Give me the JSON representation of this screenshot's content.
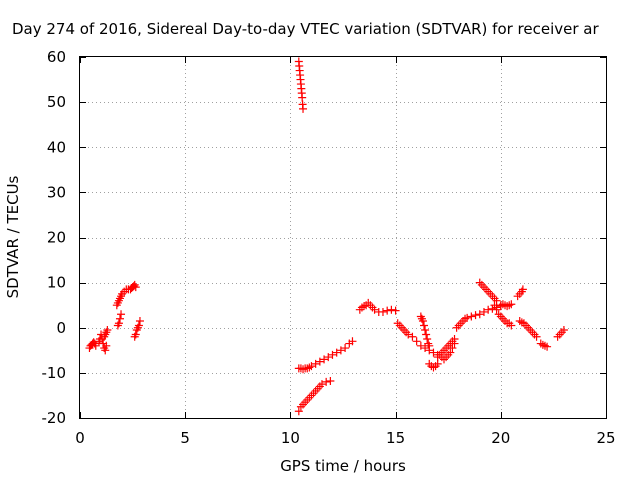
{
  "chart_data": {
    "type": "scatter",
    "title": "Day 274 of 2016, Sidereal Day-to-day VTEC variation (SDTVAR) for receiver ar",
    "xlabel": "GPS time / hours",
    "ylabel": "SDTVAR / TECUs",
    "xlim": [
      0,
      25
    ],
    "ylim": [
      -20,
      60
    ],
    "x_ticks": [
      "0",
      "5",
      "10",
      "15",
      "20",
      "25"
    ],
    "y_ticks": [
      "-20",
      "-10",
      "0",
      "10",
      "20",
      "30",
      "40",
      "50",
      "60"
    ],
    "grid": true,
    "marker": "+",
    "series_color": "#ff0000",
    "segments": [
      {
        "x": [
          0.45,
          0.5,
          0.55,
          0.6,
          0.65,
          0.7,
          0.75
        ],
        "y": [
          -4.5,
          -4.0,
          -3.8,
          -3.5,
          -3.2,
          -3.5,
          -4.0
        ]
      },
      {
        "x": [
          0.9,
          0.95,
          1.0,
          1.05,
          1.1,
          1.15,
          1.2,
          1.25
        ],
        "y": [
          -3.0,
          -2.5,
          -1.5,
          -2.5,
          -3.5,
          -4.5,
          -5.0,
          -4.0
        ]
      },
      {
        "x": [
          1.15,
          1.2,
          1.25,
          1.3
        ],
        "y": [
          -2.0,
          -1.5,
          -1.0,
          -0.5
        ]
      },
      {
        "x": [
          1.75,
          1.8,
          1.85,
          1.9,
          1.95,
          2.0,
          2.1,
          2.2,
          2.3
        ],
        "y": [
          5.0,
          5.5,
          6.0,
          6.5,
          7.0,
          7.5,
          8.0,
          8.5,
          8.5
        ]
      },
      {
        "x": [
          1.8,
          1.85,
          1.9,
          1.95
        ],
        "y": [
          0.5,
          1.0,
          2.0,
          3.0
        ]
      },
      {
        "x": [
          2.4,
          2.45,
          2.5,
          2.55,
          2.6,
          2.65
        ],
        "y": [
          8.5,
          8.8,
          9.0,
          9.2,
          9.5,
          9.0
        ]
      },
      {
        "x": [
          2.6,
          2.65,
          2.7,
          2.75,
          2.8,
          2.85
        ],
        "y": [
          -2.0,
          -1.5,
          -0.5,
          0.0,
          0.5,
          1.5
        ]
      },
      {
        "x": [
          10.4,
          10.42,
          10.44,
          10.46,
          10.48,
          10.5,
          10.52,
          10.54,
          10.56,
          10.58,
          10.6
        ],
        "y": [
          59.0,
          58.0,
          57.0,
          56.0,
          55.0,
          54.0,
          53.0,
          52.0,
          51.0,
          49.5,
          48.5
        ]
      },
      {
        "x": [
          10.4,
          10.5,
          10.6,
          10.7,
          10.8,
          10.9,
          11.0,
          11.2,
          11.4,
          11.6,
          11.8,
          12.0,
          12.2,
          12.4,
          12.6,
          12.8,
          12.95
        ],
        "y": [
          -9.0,
          -9.0,
          -9.2,
          -9.0,
          -9.0,
          -8.8,
          -8.5,
          -8.0,
          -7.5,
          -7.0,
          -6.5,
          -6.0,
          -5.5,
          -5.0,
          -4.5,
          -3.5,
          -3.0
        ]
      },
      {
        "x": [
          10.4,
          10.5,
          10.6,
          10.7,
          10.8,
          10.9,
          11.0,
          11.1,
          11.2,
          11.3,
          11.4,
          11.5,
          11.7,
          11.9
        ],
        "y": [
          -18.5,
          -17.5,
          -17.0,
          -16.5,
          -16.0,
          -15.5,
          -15.0,
          -14.5,
          -14.0,
          -13.5,
          -13.0,
          -12.5,
          -12.0,
          -11.8
        ]
      },
      {
        "x": [
          13.3,
          13.4,
          13.5,
          13.6,
          13.7,
          13.8,
          13.9,
          14.0,
          14.2,
          14.4,
          14.6,
          14.8,
          15.0
        ],
        "y": [
          4.0,
          4.5,
          4.8,
          5.0,
          5.5,
          5.0,
          4.5,
          4.0,
          3.5,
          3.5,
          3.8,
          4.0,
          3.8
        ]
      },
      {
        "x": [
          15.1,
          15.2,
          15.3,
          15.4,
          15.5,
          15.6,
          15.8,
          16.0,
          16.2,
          16.4,
          16.6,
          16.8,
          17.0,
          17.2
        ],
        "y": [
          1.0,
          0.5,
          0.0,
          -0.5,
          -1.0,
          -1.5,
          -2.0,
          -3.0,
          -4.0,
          -4.5,
          -5.0,
          -5.5,
          -6.0,
          -6.5
        ]
      },
      {
        "x": [
          16.2,
          16.25,
          16.3,
          16.35,
          16.4,
          16.45,
          16.5,
          16.55,
          16.6
        ],
        "y": [
          2.5,
          2.0,
          1.5,
          0.5,
          -0.5,
          -1.5,
          -2.5,
          -3.5,
          -4.0
        ]
      },
      {
        "x": [
          16.6,
          16.7,
          16.8,
          16.9,
          17.0
        ],
        "y": [
          -8.0,
          -8.5,
          -8.8,
          -8.5,
          -8.0
        ]
      },
      {
        "x": [
          17.0,
          17.1,
          17.2,
          17.3,
          17.4,
          17.5,
          17.6,
          17.7,
          17.8
        ],
        "y": [
          -6.5,
          -6.0,
          -5.5,
          -5.0,
          -4.5,
          -4.0,
          -3.5,
          -3.0,
          -2.5
        ]
      },
      {
        "x": [
          17.3,
          17.4,
          17.5,
          17.6,
          17.7,
          17.8
        ],
        "y": [
          -7.0,
          -6.5,
          -6.0,
          -5.5,
          -4.5,
          -3.5
        ]
      },
      {
        "x": [
          17.9,
          18.0,
          18.1,
          18.2,
          18.3,
          18.4,
          18.6,
          18.8,
          19.0,
          19.2,
          19.4,
          19.6,
          19.8,
          20.0
        ],
        "y": [
          0.0,
          0.5,
          1.0,
          1.5,
          2.0,
          2.2,
          2.5,
          2.8,
          3.0,
          3.5,
          4.0,
          4.2,
          4.5,
          4.8
        ]
      },
      {
        "x": [
          19.0,
          19.1,
          19.2,
          19.3,
          19.4,
          19.5,
          19.6,
          19.7,
          19.8
        ],
        "y": [
          10.0,
          9.5,
          9.0,
          8.5,
          8.0,
          7.5,
          7.0,
          6.5,
          6.0
        ]
      },
      {
        "x": [
          19.7,
          19.8,
          19.9,
          20.0,
          20.1,
          20.2,
          20.3,
          20.4,
          20.5
        ],
        "y": [
          5.0,
          4.0,
          3.0,
          2.5,
          2.0,
          1.5,
          1.0,
          1.0,
          0.5
        ]
      },
      {
        "x": [
          20.0,
          20.1,
          20.2,
          20.3,
          20.4,
          20.5
        ],
        "y": [
          5.0,
          5.2,
          5.0,
          4.8,
          5.0,
          5.2
        ]
      },
      {
        "x": [
          20.8,
          20.9,
          21.0,
          21.05
        ],
        "y": [
          7.0,
          7.5,
          8.0,
          8.5
        ]
      },
      {
        "x": [
          20.9,
          21.0,
          21.1,
          21.2,
          21.3,
          21.4,
          21.5,
          21.6,
          21.7
        ],
        "y": [
          1.5,
          1.2,
          1.0,
          0.5,
          0.0,
          -0.5,
          -1.0,
          -1.5,
          -2.0
        ]
      },
      {
        "x": [
          21.9,
          22.0,
          22.1,
          22.2
        ],
        "y": [
          -3.5,
          -3.8,
          -4.0,
          -4.2
        ]
      },
      {
        "x": [
          22.7,
          22.8,
          22.9,
          23.0
        ],
        "y": [
          -2.0,
          -1.5,
          -1.0,
          -0.5
        ]
      }
    ]
  }
}
